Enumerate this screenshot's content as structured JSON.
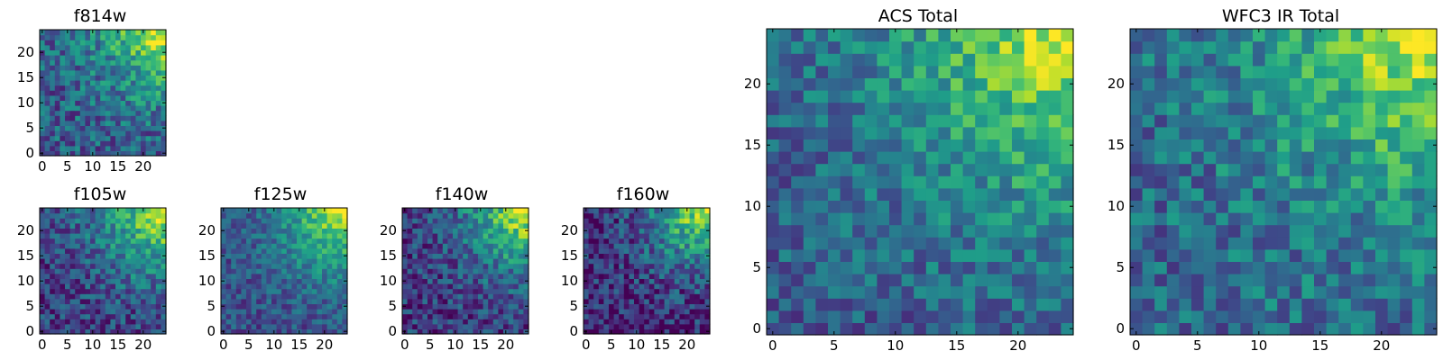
{
  "colormap": "viridis",
  "colors": {
    "viridis": [
      "#440154",
      "#482878",
      "#3e4989",
      "#31688e",
      "#26828e",
      "#1f9e89",
      "#35b779",
      "#6ece58",
      "#b5de2b",
      "#fde725"
    ],
    "axis_stroke": "#000000",
    "background": "#ffffff"
  },
  "chart_data": [
    {
      "type": "heatmap",
      "title": "f814w",
      "grid_size": 25,
      "xlim": [
        0,
        24
      ],
      "ylim": [
        0,
        24
      ],
      "xticks": [
        "0",
        "5",
        "10",
        "15",
        "20"
      ],
      "yticks": [
        "0",
        "5",
        "10",
        "15",
        "20"
      ],
      "bright_corner": "top-right",
      "peak_value": 1.0,
      "gradient_reach": 0.8,
      "noise_amplitude": 0.22,
      "base_level": 0.3,
      "value_range": [
        0,
        1
      ]
    },
    {
      "type": "heatmap",
      "title": "f105w",
      "grid_size": 25,
      "xlim": [
        0,
        24
      ],
      "ylim": [
        0,
        24
      ],
      "xticks": [
        "0",
        "5",
        "10",
        "15",
        "20"
      ],
      "yticks": [
        "0",
        "5",
        "10",
        "15",
        "20"
      ],
      "bright_corner": "top-right",
      "peak_value": 1.0,
      "gradient_reach": 0.85,
      "noise_amplitude": 0.2,
      "base_level": 0.2,
      "value_range": [
        0,
        1
      ]
    },
    {
      "type": "heatmap",
      "title": "f125w",
      "grid_size": 25,
      "xlim": [
        0,
        24
      ],
      "ylim": [
        0,
        24
      ],
      "xticks": [
        "0",
        "5",
        "10",
        "15",
        "20"
      ],
      "yticks": [
        "0",
        "5",
        "10",
        "15",
        "20"
      ],
      "bright_corner": "top-right",
      "peak_value": 1.0,
      "gradient_reach": 0.85,
      "noise_amplitude": 0.16,
      "base_level": 0.25,
      "value_range": [
        0,
        1
      ]
    },
    {
      "type": "heatmap",
      "title": "f140w",
      "grid_size": 25,
      "xlim": [
        0,
        24
      ],
      "ylim": [
        0,
        24
      ],
      "xticks": [
        "0",
        "5",
        "10",
        "15",
        "20"
      ],
      "yticks": [
        "0",
        "5",
        "10",
        "15",
        "20"
      ],
      "bright_corner": "top-right",
      "peak_value": 1.0,
      "gradient_reach": 0.8,
      "noise_amplitude": 0.2,
      "base_level": 0.18,
      "value_range": [
        0,
        1
      ]
    },
    {
      "type": "heatmap",
      "title": "f160w",
      "grid_size": 25,
      "xlim": [
        0,
        24
      ],
      "ylim": [
        0,
        24
      ],
      "xticks": [
        "0",
        "5",
        "10",
        "15",
        "20"
      ],
      "yticks": [
        "0",
        "5",
        "10",
        "15",
        "20"
      ],
      "bright_corner": "top-right",
      "peak_value": 1.0,
      "gradient_reach": 0.8,
      "noise_amplitude": 0.22,
      "base_level": 0.12,
      "value_range": [
        0,
        1
      ]
    },
    {
      "type": "heatmap",
      "title": "ACS Total",
      "grid_size": 25,
      "xlim": [
        0,
        24
      ],
      "ylim": [
        0,
        24
      ],
      "xticks": [
        "0",
        "5",
        "10",
        "15",
        "20"
      ],
      "yticks": [
        "0",
        "5",
        "10",
        "15",
        "20"
      ],
      "bright_corner": "top-right",
      "peak_value": 1.0,
      "gradient_reach": 0.95,
      "noise_amplitude": 0.18,
      "base_level": 0.3,
      "value_range": [
        0,
        1
      ]
    },
    {
      "type": "heatmap",
      "title": "WFC3 IR Total",
      "grid_size": 25,
      "xlim": [
        0,
        24
      ],
      "ylim": [
        0,
        24
      ],
      "xticks": [
        "0",
        "5",
        "10",
        "15",
        "20"
      ],
      "yticks": [
        "0",
        "5",
        "10",
        "15",
        "20"
      ],
      "bright_corner": "top-right",
      "peak_value": 1.0,
      "gradient_reach": 0.85,
      "noise_amplitude": 0.2,
      "base_level": 0.35,
      "value_range": [
        0,
        1
      ]
    }
  ]
}
